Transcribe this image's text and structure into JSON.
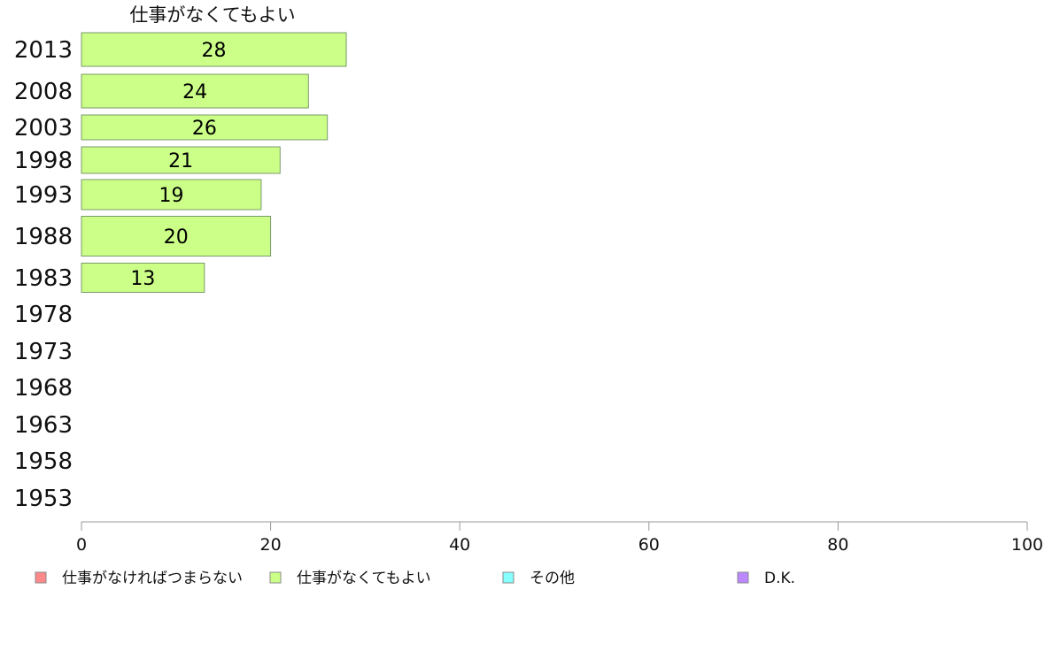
{
  "chart_data": {
    "type": "bar",
    "orientation": "horizontal",
    "title": "仕事がなくてもよい",
    "categories": [
      "2013",
      "2008",
      "2003",
      "1998",
      "1993",
      "1988",
      "1983",
      "1978",
      "1973",
      "1968",
      "1963",
      "1958",
      "1953"
    ],
    "series": [
      {
        "name": "仕事がなくてもよい",
        "color": "#ccff88",
        "values": [
          28,
          24,
          26,
          21,
          19,
          20,
          13,
          null,
          null,
          null,
          null,
          null,
          null
        ]
      }
    ],
    "xlim": [
      0,
      100
    ],
    "xticks": [
      0,
      20,
      40,
      60,
      80,
      100
    ],
    "grid": false,
    "legend_position": "bottom",
    "legend": [
      {
        "label": "仕事がなければつまらない",
        "color": "#ff8888"
      },
      {
        "label": "仕事がなくてもよい",
        "color": "#ccff88"
      },
      {
        "label": "その他",
        "color": "#88ffff"
      },
      {
        "label": "D.K.",
        "color": "#bb88ff"
      }
    ]
  }
}
